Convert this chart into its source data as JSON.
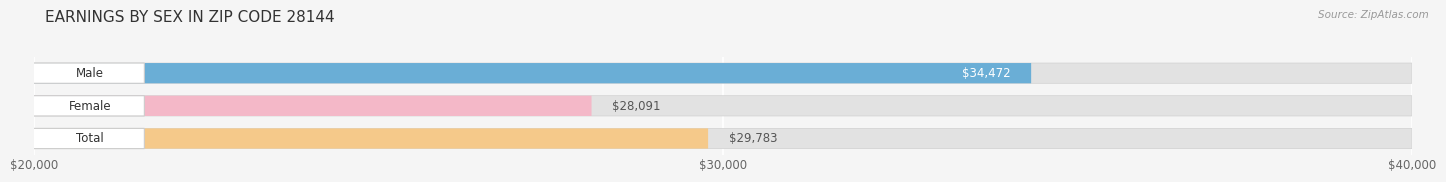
{
  "title": "EARNINGS BY SEX IN ZIP CODE 28144",
  "source": "Source: ZipAtlas.com",
  "categories": [
    "Male",
    "Female",
    "Total"
  ],
  "values": [
    34472,
    28091,
    29783
  ],
  "bar_colors": [
    "#6aaed6",
    "#f4b8c8",
    "#f5c98a"
  ],
  "background_color": "#f5f5f5",
  "bar_bg_color": "#e2e2e2",
  "xmin": 20000,
  "xmax": 40000,
  "xticks": [
    20000,
    30000,
    40000
  ],
  "xtick_labels": [
    "$20,000",
    "$30,000",
    "$40,000"
  ],
  "title_fontsize": 11,
  "label_fontsize": 8.5,
  "value_fontsize": 8.5,
  "bar_height": 0.62,
  "value_inside_color": "white",
  "value_outside_color": "#555555"
}
